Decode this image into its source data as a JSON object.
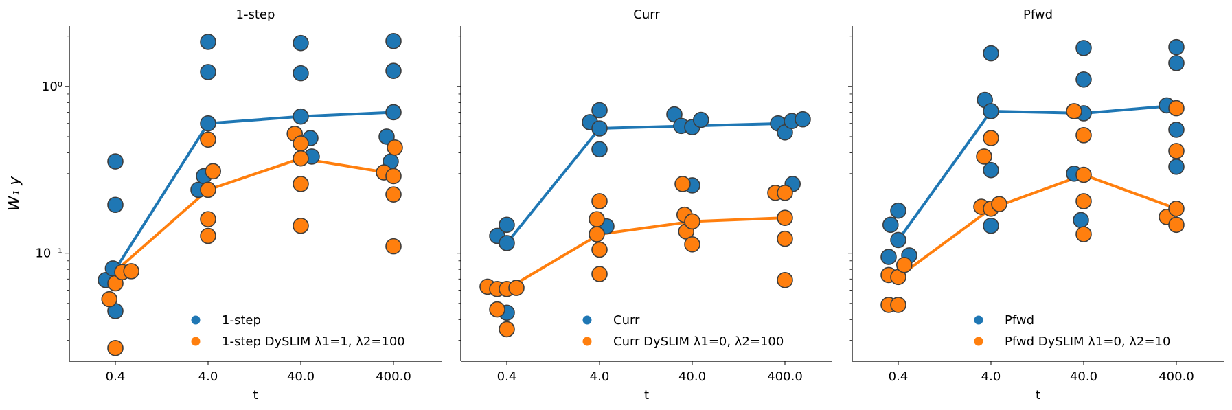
{
  "figure": {
    "ylabel": "W₁ y"
  },
  "chart_data": [
    {
      "type": "scatter",
      "title": "1-step",
      "xlabel": "t",
      "ylabel": "W₁ y",
      "x_scale": "categorical",
      "y_scale": "log",
      "ylim": [
        0.0225,
        2.3
      ],
      "categories": [
        "0.4",
        "4.0",
        "40.0",
        "400.0"
      ],
      "y_ticks": [
        {
          "value": 0.1,
          "label": "10⁻¹"
        },
        {
          "value": 1,
          "label": "10⁰"
        }
      ],
      "legend": "lower-right",
      "grid": false,
      "series": [
        {
          "name": "1-step",
          "color": "#1f77b4",
          "line": [
            0.08,
            0.6,
            0.66,
            0.7
          ],
          "points": [
            {
              "x": "0.4",
              "y": 0.069,
              "offset": -0.35
            },
            {
              "x": "0.4",
              "y": 0.081,
              "offset": -0.09
            },
            {
              "x": "0.4",
              "y": 0.045,
              "offset": 0
            },
            {
              "x": "0.4",
              "y": 0.195,
              "offset": 0
            },
            {
              "x": "0.4",
              "y": 0.355,
              "offset": 0
            },
            {
              "x": "4.0",
              "y": 0.24,
              "offset": -0.35
            },
            {
              "x": "4.0",
              "y": 0.29,
              "offset": -0.15
            },
            {
              "x": "4.0",
              "y": 0.6,
              "offset": 0
            },
            {
              "x": "4.0",
              "y": 1.22,
              "offset": 0
            },
            {
              "x": "4.0",
              "y": 1.85,
              "offset": 0
            },
            {
              "x": "40.0",
              "y": 0.66,
              "offset": 0
            },
            {
              "x": "40.0",
              "y": 1.2,
              "offset": 0
            },
            {
              "x": "40.0",
              "y": 1.82,
              "offset": 0
            },
            {
              "x": "40.0",
              "y": 0.49,
              "offset": 0.35
            },
            {
              "x": "40.0",
              "y": 0.38,
              "offset": 0.4
            },
            {
              "x": "400.0",
              "y": 0.7,
              "offset": 0
            },
            {
              "x": "400.0",
              "y": 1.24,
              "offset": 0
            },
            {
              "x": "400.0",
              "y": 1.87,
              "offset": 0
            },
            {
              "x": "400.0",
              "y": 0.5,
              "offset": -0.25
            },
            {
              "x": "400.0",
              "y": 0.355,
              "offset": -0.1
            }
          ]
        },
        {
          "name": "1-step DySLIM λ1=1, λ2=100",
          "color": "#ff7f0e",
          "line": [
            0.078,
            0.24,
            0.37,
            0.3
          ],
          "points": [
            {
              "x": "0.4",
              "y": 0.053,
              "offset": -0.22
            },
            {
              "x": "0.4",
              "y": 0.066,
              "offset": 0
            },
            {
              "x": "0.4",
              "y": 0.027,
              "offset": 0
            },
            {
              "x": "0.4",
              "y": 0.077,
              "offset": 0.25
            },
            {
              "x": "0.4",
              "y": 0.078,
              "offset": 0.58
            },
            {
              "x": "4.0",
              "y": 0.24,
              "offset": 0
            },
            {
              "x": "4.0",
              "y": 0.31,
              "offset": 0.18
            },
            {
              "x": "4.0",
              "y": 0.48,
              "offset": 0
            },
            {
              "x": "4.0",
              "y": 0.16,
              "offset": 0
            },
            {
              "x": "4.0",
              "y": 0.127,
              "offset": 0
            },
            {
              "x": "40.0",
              "y": 0.52,
              "offset": -0.22
            },
            {
              "x": "40.0",
              "y": 0.455,
              "offset": 0
            },
            {
              "x": "40.0",
              "y": 0.37,
              "offset": 0
            },
            {
              "x": "40.0",
              "y": 0.26,
              "offset": 0
            },
            {
              "x": "40.0",
              "y": 0.146,
              "offset": 0
            },
            {
              "x": "400.0",
              "y": 0.305,
              "offset": -0.35
            },
            {
              "x": "400.0",
              "y": 0.29,
              "offset": 0
            },
            {
              "x": "400.0",
              "y": 0.43,
              "offset": 0.05
            },
            {
              "x": "400.0",
              "y": 0.225,
              "offset": 0
            },
            {
              "x": "400.0",
              "y": 0.11,
              "offset": 0
            }
          ]
        }
      ]
    },
    {
      "type": "scatter",
      "title": "Curr",
      "xlabel": "t",
      "ylabel": "",
      "x_scale": "categorical",
      "y_scale": "log",
      "ylim": [
        0.0225,
        2.3
      ],
      "categories": [
        "0.4",
        "4.0",
        "40.0",
        "400.0"
      ],
      "legend": "lower-right",
      "grid": false,
      "series": [
        {
          "name": "Curr",
          "color": "#1f77b4",
          "line": [
            0.115,
            0.56,
            0.58,
            0.6
          ],
          "points": [
            {
              "x": "0.4",
              "y": 0.127,
              "offset": -0.35
            },
            {
              "x": "0.4",
              "y": 0.148,
              "offset": 0
            },
            {
              "x": "0.4",
              "y": 0.115,
              "offset": 0
            },
            {
              "x": "0.4",
              "y": 0.044,
              "offset": 0
            },
            {
              "x": "4.0",
              "y": 0.61,
              "offset": -0.35
            },
            {
              "x": "4.0",
              "y": 0.72,
              "offset": 0
            },
            {
              "x": "4.0",
              "y": 0.56,
              "offset": 0
            },
            {
              "x": "4.0",
              "y": 0.42,
              "offset": 0
            },
            {
              "x": "4.0",
              "y": 0.145,
              "offset": 0.25
            },
            {
              "x": "40.0",
              "y": 0.68,
              "offset": -0.65
            },
            {
              "x": "40.0",
              "y": 0.58,
              "offset": -0.4
            },
            {
              "x": "40.0",
              "y": 0.57,
              "offset": 0
            },
            {
              "x": "40.0",
              "y": 0.63,
              "offset": 0.32
            },
            {
              "x": "40.0",
              "y": 0.255,
              "offset": 0
            },
            {
              "x": "400.0",
              "y": 0.6,
              "offset": -0.25
            },
            {
              "x": "400.0",
              "y": 0.53,
              "offset": 0
            },
            {
              "x": "400.0",
              "y": 0.62,
              "offset": 0.25
            },
            {
              "x": "400.0",
              "y": 0.635,
              "offset": 0.65
            },
            {
              "x": "400.0",
              "y": 0.26,
              "offset": 0.28
            }
          ]
        },
        {
          "name": "Curr DySLIM λ1=0, λ2=100",
          "color": "#ff7f0e",
          "line": [
            0.061,
            0.13,
            0.155,
            0.163
          ],
          "points": [
            {
              "x": "0.4",
              "y": 0.063,
              "offset": -0.7
            },
            {
              "x": "0.4",
              "y": 0.061,
              "offset": -0.35
            },
            {
              "x": "0.4",
              "y": 0.046,
              "offset": -0.35
            },
            {
              "x": "0.4",
              "y": 0.061,
              "offset": 0
            },
            {
              "x": "0.4",
              "y": 0.035,
              "offset": 0
            },
            {
              "x": "0.4",
              "y": 0.062,
              "offset": 0.35
            },
            {
              "x": "4.0",
              "y": 0.16,
              "offset": -0.1
            },
            {
              "x": "4.0",
              "y": 0.13,
              "offset": -0.1
            },
            {
              "x": "4.0",
              "y": 0.205,
              "offset": 0
            },
            {
              "x": "4.0",
              "y": 0.105,
              "offset": 0
            },
            {
              "x": "4.0",
              "y": 0.075,
              "offset": 0
            },
            {
              "x": "40.0",
              "y": 0.26,
              "offset": -0.35
            },
            {
              "x": "40.0",
              "y": 0.17,
              "offset": -0.28
            },
            {
              "x": "40.0",
              "y": 0.135,
              "offset": -0.22
            },
            {
              "x": "40.0",
              "y": 0.155,
              "offset": 0
            },
            {
              "x": "40.0",
              "y": 0.113,
              "offset": 0
            },
            {
              "x": "400.0",
              "y": 0.23,
              "offset": -0.35
            },
            {
              "x": "400.0",
              "y": 0.23,
              "offset": 0
            },
            {
              "x": "400.0",
              "y": 0.163,
              "offset": 0
            },
            {
              "x": "400.0",
              "y": 0.122,
              "offset": 0
            },
            {
              "x": "400.0",
              "y": 0.069,
              "offset": 0
            }
          ]
        }
      ]
    },
    {
      "type": "scatter",
      "title": "Pfwd",
      "xlabel": "t",
      "ylabel": "",
      "x_scale": "categorical",
      "y_scale": "log",
      "ylim": [
        0.0225,
        2.3
      ],
      "categories": [
        "0.4",
        "4.0",
        "40.0",
        "400.0"
      ],
      "legend": "lower-right",
      "grid": false,
      "series": [
        {
          "name": "Pfwd",
          "color": "#1f77b4",
          "line": [
            0.12,
            0.71,
            0.69,
            0.77
          ],
          "points": [
            {
              "x": "0.4",
              "y": 0.095,
              "offset": -0.35
            },
            {
              "x": "0.4",
              "y": 0.148,
              "offset": -0.28
            },
            {
              "x": "0.4",
              "y": 0.12,
              "offset": 0
            },
            {
              "x": "0.4",
              "y": 0.18,
              "offset": 0
            },
            {
              "x": "0.4",
              "y": 0.097,
              "offset": 0.4
            },
            {
              "x": "4.0",
              "y": 0.83,
              "offset": -0.22
            },
            {
              "x": "4.0",
              "y": 0.71,
              "offset": 0
            },
            {
              "x": "4.0",
              "y": 1.58,
              "offset": 0
            },
            {
              "x": "4.0",
              "y": 0.315,
              "offset": 0
            },
            {
              "x": "4.0",
              "y": 0.146,
              "offset": 0
            },
            {
              "x": "40.0",
              "y": 0.3,
              "offset": -0.35
            },
            {
              "x": "40.0",
              "y": 0.69,
              "offset": 0
            },
            {
              "x": "40.0",
              "y": 1.1,
              "offset": 0
            },
            {
              "x": "40.0",
              "y": 1.7,
              "offset": 0
            },
            {
              "x": "40.0",
              "y": 0.158,
              "offset": -0.1
            },
            {
              "x": "400.0",
              "y": 0.77,
              "offset": -0.35
            },
            {
              "x": "400.0",
              "y": 1.72,
              "offset": 0
            },
            {
              "x": "400.0",
              "y": 1.38,
              "offset": 0
            },
            {
              "x": "400.0",
              "y": 0.55,
              "offset": 0
            },
            {
              "x": "400.0",
              "y": 0.33,
              "offset": 0
            }
          ]
        },
        {
          "name": "Pfwd DySLIM λ1=0, λ2=10",
          "color": "#ff7f0e",
          "line": [
            0.072,
            0.185,
            0.295,
            0.185
          ],
          "points": [
            {
              "x": "0.4",
              "y": 0.074,
              "offset": -0.35
            },
            {
              "x": "0.4",
              "y": 0.049,
              "offset": -0.35
            },
            {
              "x": "0.4",
              "y": 0.072,
              "offset": 0
            },
            {
              "x": "0.4",
              "y": 0.049,
              "offset": 0
            },
            {
              "x": "0.4",
              "y": 0.085,
              "offset": 0.22
            },
            {
              "x": "4.0",
              "y": 0.19,
              "offset": -0.35
            },
            {
              "x": "4.0",
              "y": 0.38,
              "offset": -0.25
            },
            {
              "x": "4.0",
              "y": 0.49,
              "offset": 0
            },
            {
              "x": "4.0",
              "y": 0.185,
              "offset": 0
            },
            {
              "x": "4.0",
              "y": 0.197,
              "offset": 0.3
            },
            {
              "x": "40.0",
              "y": 0.71,
              "offset": -0.35
            },
            {
              "x": "40.0",
              "y": 0.51,
              "offset": 0
            },
            {
              "x": "40.0",
              "y": 0.295,
              "offset": 0
            },
            {
              "x": "40.0",
              "y": 0.205,
              "offset": 0
            },
            {
              "x": "40.0",
              "y": 0.13,
              "offset": 0
            },
            {
              "x": "400.0",
              "y": 0.165,
              "offset": -0.35
            },
            {
              "x": "400.0",
              "y": 0.74,
              "offset": 0
            },
            {
              "x": "400.0",
              "y": 0.41,
              "offset": 0
            },
            {
              "x": "400.0",
              "y": 0.185,
              "offset": 0
            },
            {
              "x": "400.0",
              "y": 0.148,
              "offset": 0
            }
          ]
        }
      ]
    }
  ]
}
